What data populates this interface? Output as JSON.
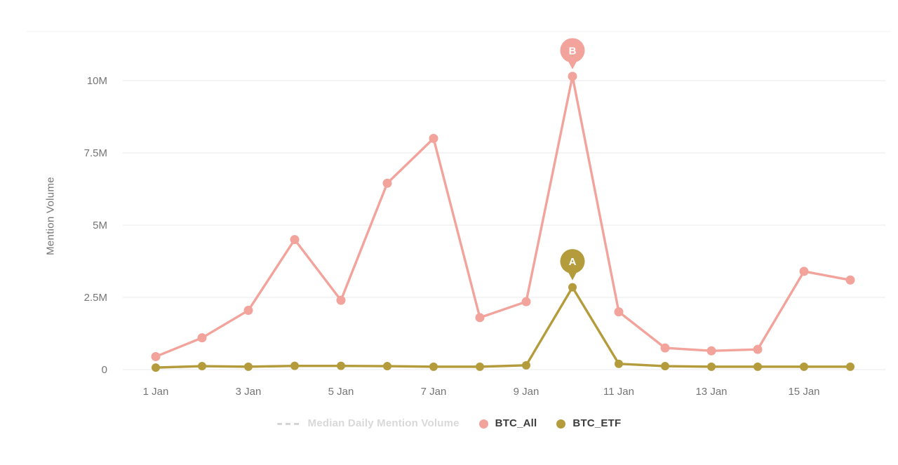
{
  "chart_data": {
    "type": "line",
    "title": "",
    "ylabel": "Mention Volume",
    "unit": "millions of mentions",
    "grid": "horizontal",
    "legend_position": "bottom",
    "x": [
      1,
      2,
      3,
      4,
      5,
      6,
      7,
      8,
      9,
      10,
      11,
      12,
      13,
      14,
      15,
      16
    ],
    "x_ticks": [
      {
        "day": 1,
        "label": "1 Jan"
      },
      {
        "day": 3,
        "label": "3 Jan"
      },
      {
        "day": 5,
        "label": "5 Jan"
      },
      {
        "day": 7,
        "label": "7 Jan"
      },
      {
        "day": 9,
        "label": "9 Jan"
      },
      {
        "day": 11,
        "label": "11 Jan"
      },
      {
        "day": 13,
        "label": "13 Jan"
      },
      {
        "day": 15,
        "label": "15 Jan"
      }
    ],
    "y_ticks": [
      {
        "value": 0,
        "label": "0"
      },
      {
        "value": 2.5,
        "label": "2.5M"
      },
      {
        "value": 5,
        "label": "5M"
      },
      {
        "value": 7.5,
        "label": "7.5M"
      },
      {
        "value": 10,
        "label": "10M"
      }
    ],
    "ylim": [
      0,
      11.7
    ],
    "series": [
      {
        "name": "BTC_All",
        "color": "#F2A39B",
        "values_m": [
          0.45,
          1.1,
          2.05,
          4.5,
          2.4,
          6.45,
          8.0,
          1.8,
          2.35,
          10.15,
          2.0,
          0.75,
          0.65,
          0.7,
          3.4,
          3.1
        ]
      },
      {
        "name": "BTC_ETF",
        "color": "#B49C3C",
        "values_m": [
          0.07,
          0.12,
          0.1,
          0.13,
          0.13,
          0.12,
          0.1,
          0.1,
          0.15,
          2.85,
          0.2,
          0.12,
          0.1,
          0.1,
          0.1,
          0.1
        ]
      }
    ],
    "annotations": [
      {
        "label": "B",
        "series": "BTC_All",
        "day": 10,
        "value_m": 10.15
      },
      {
        "label": "A",
        "series": "BTC_ETF",
        "day": 10,
        "value_m": 2.85
      }
    ],
    "legend": [
      {
        "label": "Median Daily Mention Volume",
        "swatch": "dashed-line",
        "color": "#D5D5D5",
        "muted": true
      },
      {
        "label": "BTC_All",
        "swatch": "dot",
        "color": "#F2A39B",
        "muted": false
      },
      {
        "label": "BTC_ETF",
        "swatch": "dot",
        "color": "#B49C3C",
        "muted": false
      }
    ]
  },
  "colors": {
    "background": "#FFFFFF",
    "gridline": "#EDEDED",
    "top_border": "#F9F9F9",
    "axis_text": "#757575",
    "muted_legend_text": "#D9D9D9",
    "legend_text": "#3C3C3C",
    "pin_letter": "#FFFFFF"
  }
}
